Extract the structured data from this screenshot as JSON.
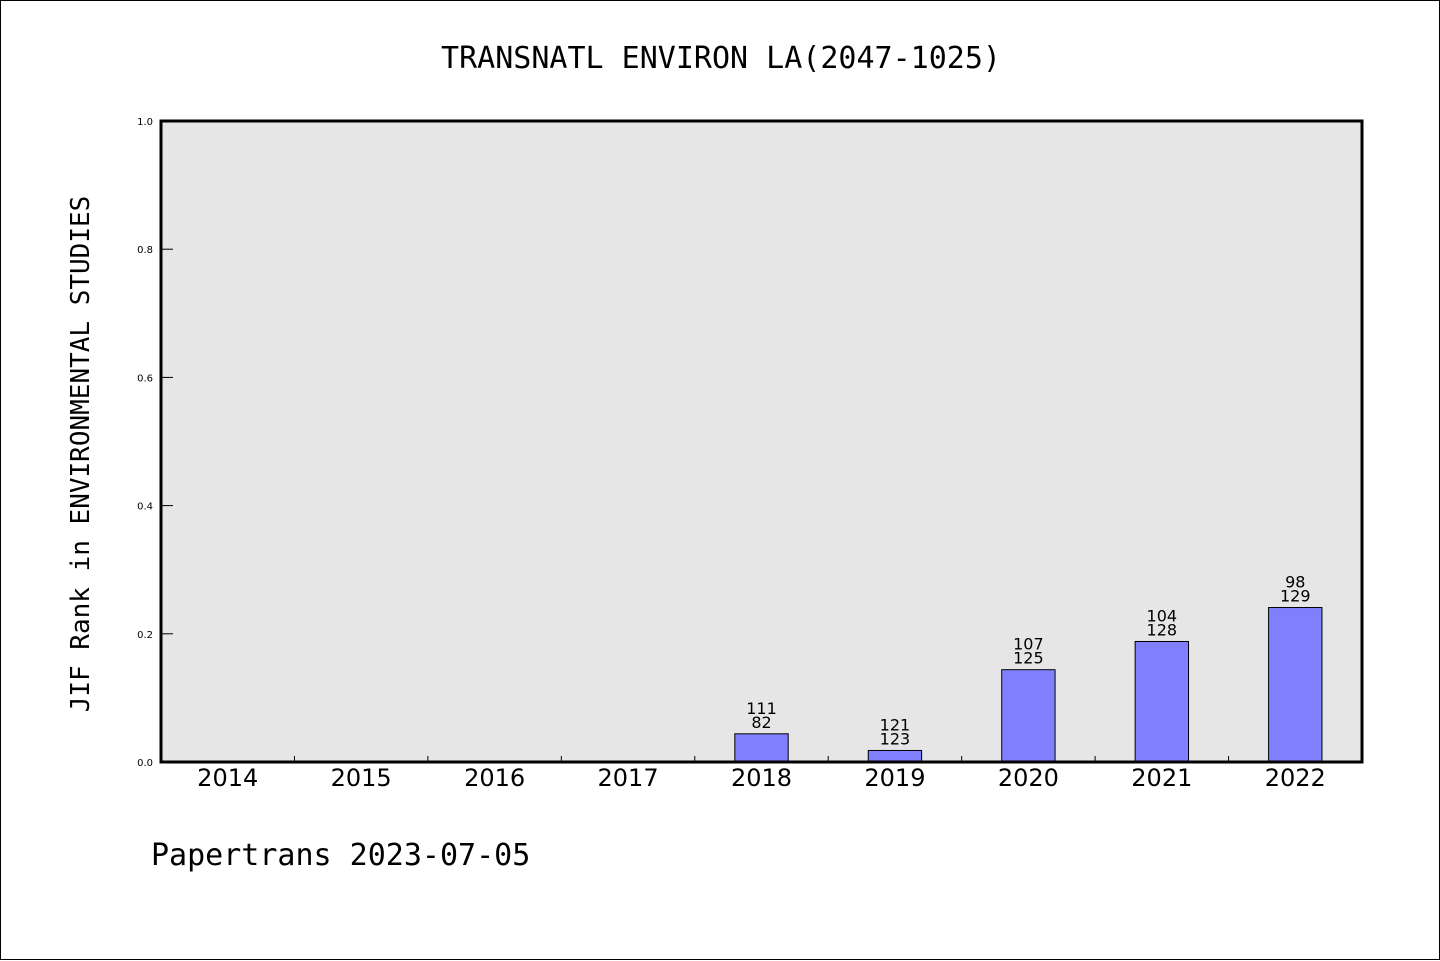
{
  "chart_data": {
    "type": "bar",
    "title": "TRANSNATL ENVIRON LA(2047-1025)",
    "ylabel": "JIF Rank in ENVIRONMENTAL STUDIES",
    "xlabel": "",
    "ylim": [
      0.0,
      1.0
    ],
    "yticks": [
      "0.0",
      "0.2",
      "0.4",
      "0.6",
      "0.8",
      "1.0"
    ],
    "categories": [
      "2014",
      "2015",
      "2016",
      "2017",
      "2018",
      "2019",
      "2020",
      "2021",
      "2022"
    ],
    "values": [
      null,
      null,
      null,
      null,
      0.044,
      0.018,
      0.144,
      0.188,
      0.241
    ],
    "bar_labels": [
      null,
      null,
      null,
      null,
      [
        "111",
        "82"
      ],
      [
        "121",
        "123"
      ],
      [
        "107",
        "125"
      ],
      [
        "104",
        "128"
      ],
      [
        "98",
        "129"
      ]
    ],
    "grid": false,
    "colors": {
      "bar": "#8080ff",
      "plot_background": "#e6e6e6",
      "axis": "#000000"
    }
  },
  "footer": "Papertrans 2023-07-05"
}
